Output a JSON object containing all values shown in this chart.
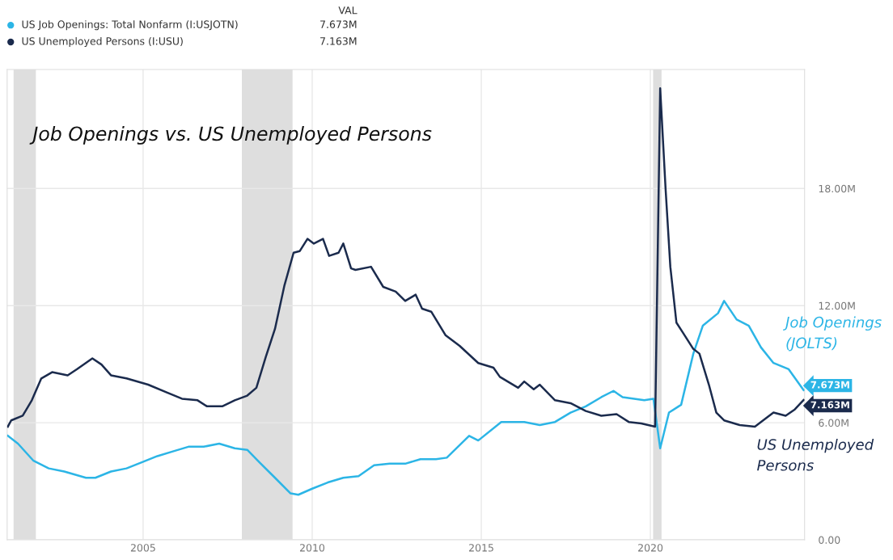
{
  "chart_data": {
    "type": "line",
    "title": "Job Openings vs. US Unemployed Persons",
    "legend_title": "VAL",
    "xlim": [
      2000.98,
      2024.56
    ],
    "xticks": [
      2005,
      2010,
      2015,
      2020
    ],
    "ylim": [
      0,
      24.1
    ],
    "yticks": [
      {
        "value": 0,
        "label": "0.00"
      },
      {
        "value": 6,
        "label": "6.00M"
      },
      {
        "value": 12,
        "label": "12.00M"
      },
      {
        "value": 18,
        "label": "18.00M"
      }
    ],
    "grid": true,
    "legend": "top left",
    "line_style": "solid",
    "marker": "none",
    "bands": [
      {
        "axis": "x",
        "from": 2001.17,
        "to": 2001.83,
        "color": "#dedede"
      },
      {
        "axis": "x",
        "from": 2007.92,
        "to": 2009.42,
        "color": "#dedede"
      },
      {
        "axis": "x",
        "from": 2020.08,
        "to": 2020.33,
        "color": "#dedede"
      }
    ],
    "annotations": [
      "Job Openings\n(JOLTS)",
      "US Unemployed\nPersons"
    ],
    "series": [
      {
        "name": "US Job Openings: Total Nonfarm (I:USJOTN)",
        "color": "#2cb5e6",
        "x": [
          2001.0,
          2001.3,
          2001.76,
          2002.21,
          2002.67,
          2003.31,
          2003.59,
          2004.05,
          2004.51,
          2004.96,
          2005.42,
          2005.88,
          2006.34,
          2006.79,
          2007.25,
          2007.71,
          2008.08,
          2008.44,
          2008.9,
          2009.36,
          2009.59,
          2010.0,
          2010.46,
          2010.92,
          2011.37,
          2011.83,
          2012.29,
          2012.75,
          2013.2,
          2013.66,
          2013.98,
          2014.64,
          2014.91,
          2015.59,
          2016.27,
          2016.73,
          2017.18,
          2017.64,
          2018.09,
          2018.55,
          2018.91,
          2019.18,
          2019.82,
          2020.09,
          2020.29,
          2020.55,
          2020.91,
          2021.27,
          2021.55,
          2022.0,
          2022.18,
          2022.55,
          2022.91,
          2023.27,
          2023.64,
          2024.09,
          2024.53
        ],
        "values": [
          5.33,
          4.93,
          4.05,
          3.66,
          3.5,
          3.18,
          3.18,
          3.5,
          3.66,
          3.97,
          4.29,
          4.53,
          4.77,
          4.77,
          4.93,
          4.69,
          4.61,
          3.97,
          3.18,
          2.38,
          2.31,
          2.62,
          2.94,
          3.18,
          3.26,
          3.82,
          3.9,
          3.9,
          4.13,
          4.13,
          4.21,
          5.33,
          5.09,
          6.04,
          6.04,
          5.88,
          6.04,
          6.52,
          6.84,
          7.31,
          7.63,
          7.31,
          7.15,
          7.23,
          4.69,
          6.52,
          6.92,
          9.54,
          10.97,
          11.61,
          12.24,
          11.29,
          10.97,
          9.86,
          9.06,
          8.74,
          7.673
        ],
        "value_labels": [
          null,
          null,
          null,
          null,
          null,
          null,
          null,
          null,
          null,
          null,
          null,
          null,
          null,
          null,
          null,
          null,
          null,
          null,
          null,
          null,
          null,
          null,
          null,
          null,
          null,
          null,
          null,
          null,
          null,
          null,
          null,
          null,
          null,
          null,
          null,
          null,
          null,
          null,
          null,
          null,
          null,
          null,
          null,
          null,
          null,
          null,
          null,
          null,
          null,
          null,
          null,
          null,
          null,
          null,
          null,
          null,
          "7.673M"
        ]
      },
      {
        "name": "US Unemployed Persons (I:USU)",
        "color": "#1b2b4d",
        "x": [
          2001.0,
          2001.1,
          2001.44,
          2001.71,
          2001.99,
          2002.31,
          2002.77,
          2003.04,
          2003.5,
          2003.77,
          2004.05,
          2004.51,
          2005.15,
          2005.7,
          2006.15,
          2006.61,
          2006.89,
          2007.34,
          2007.71,
          2008.08,
          2008.35,
          2008.63,
          2008.9,
          2009.18,
          2009.45,
          2009.63,
          2009.86,
          2010.05,
          2010.32,
          2010.5,
          2010.78,
          2010.92,
          2011.15,
          2011.28,
          2011.74,
          2012.1,
          2012.47,
          2012.75,
          2013.06,
          2013.25,
          2013.52,
          2013.94,
          2014.36,
          2014.91,
          2015.36,
          2015.55,
          2016.09,
          2016.27,
          2016.55,
          2016.73,
          2017.18,
          2017.64,
          2018.09,
          2018.55,
          2019.0,
          2019.36,
          2019.73,
          2020.14,
          2020.29,
          2020.45,
          2020.59,
          2020.77,
          2020.95,
          2021.27,
          2021.45,
          2021.73,
          2021.95,
          2022.18,
          2022.64,
          2023.09,
          2023.27,
          2023.64,
          2024.0,
          2024.27,
          2024.53
        ],
        "values": [
          5.8,
          6.12,
          6.36,
          7.15,
          8.27,
          8.59,
          8.43,
          8.74,
          9.3,
          8.98,
          8.43,
          8.27,
          7.95,
          7.55,
          7.23,
          7.15,
          6.84,
          6.84,
          7.15,
          7.39,
          7.79,
          9.38,
          10.81,
          13.04,
          14.71,
          14.79,
          15.42,
          15.18,
          15.42,
          14.55,
          14.71,
          15.18,
          13.91,
          13.83,
          13.99,
          12.96,
          12.72,
          12.24,
          12.56,
          11.84,
          11.69,
          10.49,
          9.94,
          9.06,
          8.82,
          8.35,
          7.79,
          8.11,
          7.71,
          7.95,
          7.15,
          7.0,
          6.6,
          6.36,
          6.44,
          6.04,
          5.96,
          5.8,
          23.13,
          17.97,
          13.99,
          11.13,
          10.65,
          9.78,
          9.54,
          7.95,
          6.52,
          6.12,
          5.88,
          5.8,
          6.04,
          6.52,
          6.36,
          6.68,
          7.163
        ],
        "value_labels": [
          null,
          null,
          null,
          null,
          null,
          null,
          null,
          null,
          null,
          null,
          null,
          null,
          null,
          null,
          null,
          null,
          null,
          null,
          null,
          null,
          null,
          null,
          null,
          null,
          null,
          null,
          null,
          null,
          null,
          null,
          null,
          null,
          null,
          null,
          null,
          null,
          null,
          null,
          null,
          null,
          null,
          null,
          null,
          null,
          null,
          null,
          null,
          null,
          null,
          null,
          null,
          null,
          null,
          null,
          null,
          null,
          null,
          null,
          null,
          null,
          null,
          null,
          null,
          null,
          null,
          null,
          null,
          null,
          null,
          null,
          null,
          null,
          null,
          null,
          "7.163M"
        ]
      }
    ]
  }
}
